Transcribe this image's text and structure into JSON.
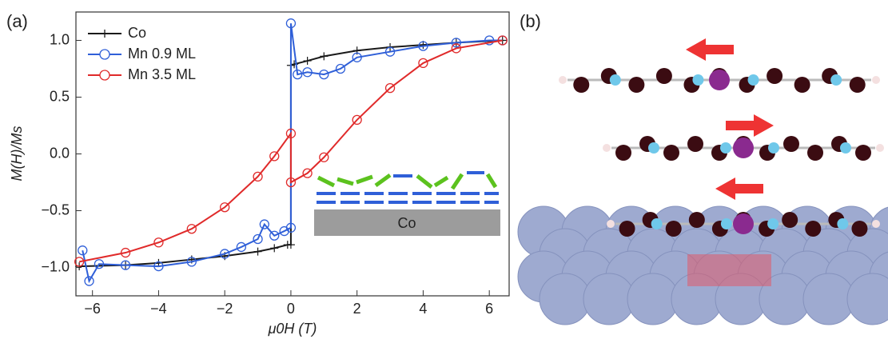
{
  "panel_labels": [
    "(a)",
    "(b)"
  ],
  "chart_data": {
    "type": "line",
    "x_label": "μ0H (T)",
    "y_label": "M(H)/Ms",
    "inset_label": "Co",
    "xlim": [
      -6.5,
      6.6
    ],
    "ylim": [
      -1.25,
      1.25
    ],
    "xticks": [
      {
        "value": -6,
        "label": "−6"
      },
      {
        "value": -4,
        "label": "−4"
      },
      {
        "value": -2,
        "label": "−2"
      },
      0,
      2,
      4,
      6
    ],
    "yticks": [
      {
        "value": -1,
        "label": "−1.0"
      },
      {
        "value": -0.5,
        "label": "−0.5"
      },
      {
        "value": 0,
        "label": "0.0"
      },
      {
        "value": 0.5,
        "label": "0.5"
      },
      {
        "value": 1,
        "label": "1.0"
      }
    ],
    "legend": "upper left",
    "series": [
      {
        "name": "Co",
        "color": "#1a1a1a",
        "marker": "plus",
        "x": [
          -6.4,
          -5,
          -4,
          -3,
          -2,
          -1,
          -0.5,
          -0.1,
          0,
          0,
          0.1,
          0.5,
          1,
          2,
          3,
          4,
          5,
          6.4
        ],
        "values": [
          -0.99,
          -0.98,
          -0.96,
          -0.93,
          -0.9,
          -0.86,
          -0.83,
          -0.8,
          -0.8,
          0.78,
          0.79,
          0.82,
          0.86,
          0.91,
          0.94,
          0.96,
          0.98,
          1.0
        ]
      },
      {
        "name": "Mn 0.9 ML",
        "color": "#2f5fd8",
        "marker": "circle",
        "x": [
          -6.3,
          -6.1,
          -5.8,
          -5,
          -4,
          -3,
          -2,
          -1.5,
          -1,
          -0.8,
          -0.5,
          -0.2,
          0,
          0,
          0.2,
          0.5,
          1,
          1.5,
          2,
          3,
          4,
          5,
          6,
          6.4
        ],
        "values": [
          -0.85,
          -1.12,
          -0.97,
          -0.98,
          -0.99,
          -0.95,
          -0.88,
          -0.82,
          -0.75,
          -0.62,
          -0.72,
          -0.68,
          -0.65,
          1.15,
          0.7,
          0.72,
          0.7,
          0.75,
          0.85,
          0.9,
          0.95,
          0.98,
          1.0,
          1.0
        ]
      },
      {
        "name": "Mn 3.5 ML",
        "color": "#e02a2a",
        "marker": "circle",
        "x": [
          -6.4,
          -5,
          -4,
          -3,
          -2,
          -1,
          -0.5,
          0,
          0,
          0.5,
          1,
          2,
          3,
          4,
          5,
          6.4
        ],
        "values": [
          -0.95,
          -0.87,
          -0.78,
          -0.66,
          -0.47,
          -0.2,
          -0.02,
          0.18,
          -0.25,
          -0.17,
          -0.03,
          0.3,
          0.58,
          0.8,
          0.93,
          1.0
        ]
      }
    ]
  }
}
